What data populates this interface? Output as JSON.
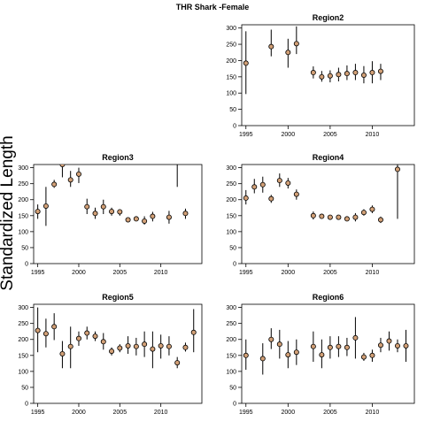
{
  "figure": {
    "title": "THR Shark -Female",
    "ylabel": "Standardized Length"
  },
  "chart_data": [
    {
      "type": "scatter",
      "title": "Region2",
      "xlim": [
        1994.5,
        2015
      ],
      "ylim": [
        0,
        310
      ],
      "x_ticks": [
        1995,
        2000,
        2005,
        2010
      ],
      "y_ticks": [
        0,
        50,
        100,
        150,
        200,
        250,
        300
      ],
      "marker_color": "#d2a077",
      "points": [
        {
          "x": 1995,
          "y": 192,
          "lo": 97,
          "hi": 290
        },
        {
          "x": 1998,
          "y": 243,
          "lo": 213,
          "hi": 295
        },
        {
          "x": 2000,
          "y": 225,
          "lo": 178,
          "hi": 267
        },
        {
          "x": 2001,
          "y": 252,
          "lo": 220,
          "hi": 305
        },
        {
          "x": 2003,
          "y": 163,
          "lo": 145,
          "hi": 182
        },
        {
          "x": 2004,
          "y": 150,
          "lo": 135,
          "hi": 168
        },
        {
          "x": 2005,
          "y": 153,
          "lo": 133,
          "hi": 170
        },
        {
          "x": 2006,
          "y": 157,
          "lo": 136,
          "hi": 178
        },
        {
          "x": 2007,
          "y": 160,
          "lo": 140,
          "hi": 185
        },
        {
          "x": 2008,
          "y": 163,
          "lo": 140,
          "hi": 190
        },
        {
          "x": 2009,
          "y": 155,
          "lo": 130,
          "hi": 183
        },
        {
          "x": 2010,
          "y": 163,
          "lo": 130,
          "hi": 198
        },
        {
          "x": 2011,
          "y": 167,
          "lo": 140,
          "hi": 190
        }
      ]
    },
    {
      "type": "scatter",
      "title": "Region3",
      "xlim": [
        1994.5,
        2015
      ],
      "ylim": [
        0,
        310
      ],
      "x_ticks": [
        1995,
        2000,
        2005,
        2010
      ],
      "y_ticks": [
        0,
        50,
        100,
        150,
        200,
        250,
        300
      ],
      "marker_color": "#d2a077",
      "points": [
        {
          "x": 1995,
          "y": 163,
          "lo": 140,
          "hi": 185
        },
        {
          "x": 1996,
          "y": 180,
          "lo": 118,
          "hi": 240
        },
        {
          "x": 1997,
          "y": 248,
          "lo": 237,
          "hi": 262
        },
        {
          "x": 1998,
          "y": 310,
          "lo": 270,
          "hi": 325
        },
        {
          "x": 1999,
          "y": 262,
          "lo": 240,
          "hi": 290
        },
        {
          "x": 2000,
          "y": 280,
          "lo": 252,
          "hi": 300
        },
        {
          "x": 2001,
          "y": 178,
          "lo": 155,
          "hi": 203
        },
        {
          "x": 2002,
          "y": 157,
          "lo": 140,
          "hi": 175
        },
        {
          "x": 2003,
          "y": 178,
          "lo": 155,
          "hi": 200
        },
        {
          "x": 2004,
          "y": 163,
          "lo": 150,
          "hi": 175
        },
        {
          "x": 2005,
          "y": 162,
          "lo": 150,
          "hi": 170
        },
        {
          "x": 2006,
          "y": 137,
          "lo": 130,
          "hi": 143
        },
        {
          "x": 2007,
          "y": 140,
          "lo": 133,
          "hi": 145
        },
        {
          "x": 2008,
          "y": 133,
          "lo": 122,
          "hi": 148
        },
        {
          "x": 2009,
          "y": 148,
          "lo": 132,
          "hi": 162
        },
        {
          "x": 2011,
          "y": 145,
          "lo": 125,
          "hi": 165
        },
        {
          "x": 2013,
          "y": 157,
          "lo": 140,
          "hi": 172
        }
      ],
      "extra_intervals": [
        {
          "x": 2012,
          "lo": 240,
          "hi": 325
        }
      ]
    },
    {
      "type": "scatter",
      "title": "Region4",
      "xlim": [
        1994.5,
        2015
      ],
      "ylim": [
        0,
        310
      ],
      "x_ticks": [
        1995,
        2000,
        2005,
        2010
      ],
      "y_ticks": [
        0,
        50,
        100,
        150,
        200,
        250,
        300
      ],
      "marker_color": "#d2a077",
      "points": [
        {
          "x": 1995,
          "y": 205,
          "lo": 185,
          "hi": 230
        },
        {
          "x": 1996,
          "y": 240,
          "lo": 220,
          "hi": 265
        },
        {
          "x": 1997,
          "y": 247,
          "lo": 222,
          "hi": 272
        },
        {
          "x": 1998,
          "y": 203,
          "lo": 190,
          "hi": 215
        },
        {
          "x": 1999,
          "y": 260,
          "lo": 240,
          "hi": 282
        },
        {
          "x": 2000,
          "y": 252,
          "lo": 235,
          "hi": 268
        },
        {
          "x": 2001,
          "y": 217,
          "lo": 200,
          "hi": 232
        },
        {
          "x": 2003,
          "y": 150,
          "lo": 138,
          "hi": 163
        },
        {
          "x": 2004,
          "y": 148,
          "lo": 143,
          "hi": 152
        },
        {
          "x": 2005,
          "y": 145,
          "lo": 140,
          "hi": 150
        },
        {
          "x": 2006,
          "y": 145,
          "lo": 140,
          "hi": 150
        },
        {
          "x": 2007,
          "y": 140,
          "lo": 135,
          "hi": 146
        },
        {
          "x": 2008,
          "y": 145,
          "lo": 132,
          "hi": 158
        },
        {
          "x": 2009,
          "y": 160,
          "lo": 150,
          "hi": 170
        },
        {
          "x": 2010,
          "y": 170,
          "lo": 158,
          "hi": 182
        },
        {
          "x": 2011,
          "y": 137,
          "lo": 127,
          "hi": 147
        },
        {
          "x": 2013,
          "y": 295,
          "lo": 140,
          "hi": 320
        }
      ]
    },
    {
      "type": "scatter",
      "title": "Region5",
      "xlim": [
        1994.5,
        2015
      ],
      "ylim": [
        0,
        310
      ],
      "x_ticks": [
        1995,
        2000,
        2005,
        2010
      ],
      "y_ticks": [
        0,
        50,
        100,
        150,
        200,
        250,
        300
      ],
      "marker_color": "#d2a077",
      "points": [
        {
          "x": 1995,
          "y": 228,
          "lo": 160,
          "hi": 300
        },
        {
          "x": 1996,
          "y": 218,
          "lo": 175,
          "hi": 265
        },
        {
          "x": 1997,
          "y": 240,
          "lo": 198,
          "hi": 282
        },
        {
          "x": 1998,
          "y": 155,
          "lo": 110,
          "hi": 195
        },
        {
          "x": 1999,
          "y": 178,
          "lo": 110,
          "hi": 240
        },
        {
          "x": 2000,
          "y": 203,
          "lo": 180,
          "hi": 225
        },
        {
          "x": 2001,
          "y": 220,
          "lo": 200,
          "hi": 240
        },
        {
          "x": 2002,
          "y": 210,
          "lo": 195,
          "hi": 225
        },
        {
          "x": 2003,
          "y": 193,
          "lo": 168,
          "hi": 220
        },
        {
          "x": 2004,
          "y": 163,
          "lo": 150,
          "hi": 175
        },
        {
          "x": 2005,
          "y": 173,
          "lo": 160,
          "hi": 185
        },
        {
          "x": 2006,
          "y": 180,
          "lo": 155,
          "hi": 210
        },
        {
          "x": 2007,
          "y": 178,
          "lo": 150,
          "hi": 205
        },
        {
          "x": 2008,
          "y": 185,
          "lo": 145,
          "hi": 225
        },
        {
          "x": 2009,
          "y": 170,
          "lo": 110,
          "hi": 225
        },
        {
          "x": 2010,
          "y": 180,
          "lo": 140,
          "hi": 215
        },
        {
          "x": 2011,
          "y": 178,
          "lo": 150,
          "hi": 210
        },
        {
          "x": 2012,
          "y": 127,
          "lo": 110,
          "hi": 145
        },
        {
          "x": 2013,
          "y": 175,
          "lo": 162,
          "hi": 190
        },
        {
          "x": 2014,
          "y": 222,
          "lo": 160,
          "hi": 295
        }
      ]
    },
    {
      "type": "scatter",
      "title": "Region6",
      "xlim": [
        1994.5,
        2015
      ],
      "ylim": [
        0,
        310
      ],
      "x_ticks": [
        1995,
        2000,
        2005,
        2010
      ],
      "y_ticks": [
        0,
        50,
        100,
        150,
        200,
        250,
        300
      ],
      "marker_color": "#d2a077",
      "points": [
        {
          "x": 1995,
          "y": 150,
          "lo": 105,
          "hi": 200
        },
        {
          "x": 1997,
          "y": 140,
          "lo": 90,
          "hi": 188
        },
        {
          "x": 1998,
          "y": 200,
          "lo": 170,
          "hi": 235
        },
        {
          "x": 1999,
          "y": 185,
          "lo": 140,
          "hi": 230
        },
        {
          "x": 2000,
          "y": 152,
          "lo": 110,
          "hi": 195
        },
        {
          "x": 2001,
          "y": 160,
          "lo": 120,
          "hi": 200
        },
        {
          "x": 2003,
          "y": 178,
          "lo": 130,
          "hi": 225
        },
        {
          "x": 2004,
          "y": 152,
          "lo": 110,
          "hi": 200
        },
        {
          "x": 2005,
          "y": 175,
          "lo": 140,
          "hi": 210
        },
        {
          "x": 2006,
          "y": 178,
          "lo": 145,
          "hi": 210
        },
        {
          "x": 2007,
          "y": 175,
          "lo": 148,
          "hi": 205
        },
        {
          "x": 2008,
          "y": 205,
          "lo": 140,
          "hi": 270
        },
        {
          "x": 2009,
          "y": 145,
          "lo": 133,
          "hi": 158
        },
        {
          "x": 2010,
          "y": 150,
          "lo": 130,
          "hi": 168
        },
        {
          "x": 2011,
          "y": 182,
          "lo": 160,
          "hi": 205
        },
        {
          "x": 2012,
          "y": 195,
          "lo": 165,
          "hi": 225
        },
        {
          "x": 2013,
          "y": 180,
          "lo": 160,
          "hi": 200
        },
        {
          "x": 2014,
          "y": 180,
          "lo": 130,
          "hi": 230
        }
      ]
    }
  ]
}
